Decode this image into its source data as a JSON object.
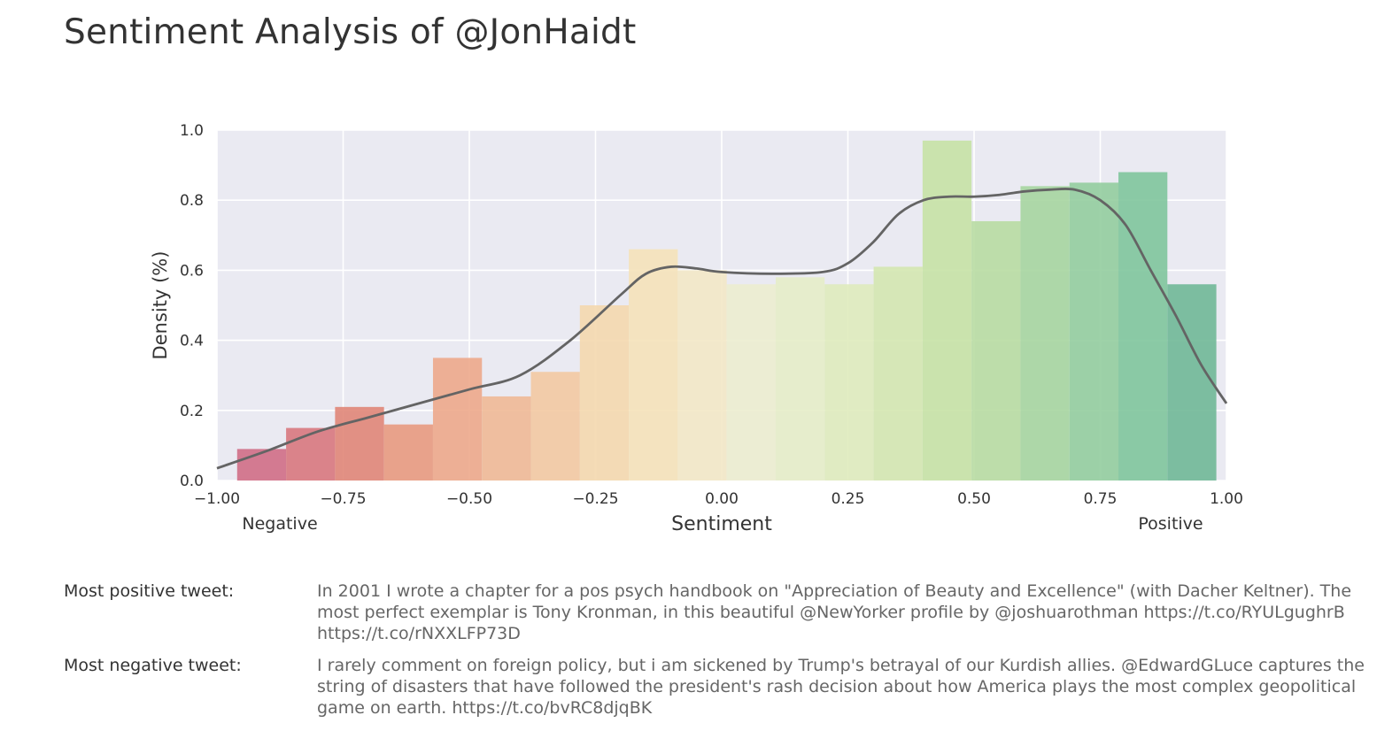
{
  "page": {
    "title": "Sentiment Analysis of @JonHaidt"
  },
  "chart_data": {
    "type": "bar",
    "title": "",
    "xlabel": "Sentiment",
    "ylabel": "Density (%)",
    "xlim": [
      -1.0,
      1.0
    ],
    "ylim": [
      0.0,
      1.0
    ],
    "x_ticks": [
      "−1.00",
      "−0.75",
      "−0.50",
      "−0.25",
      "0.00",
      "0.25",
      "0.50",
      "0.75",
      "1.00"
    ],
    "x_tick_values": [
      -1.0,
      -0.75,
      -0.5,
      -0.25,
      0.0,
      0.25,
      0.5,
      0.75,
      1.0
    ],
    "y_ticks": [
      "0.0",
      "0.2",
      "0.4",
      "0.6",
      "0.8",
      "1.0"
    ],
    "y_tick_values": [
      0.0,
      0.2,
      0.4,
      0.6,
      0.8,
      1.0
    ],
    "x_end_labels": {
      "left": "Negative",
      "right": "Positive"
    },
    "grid": true,
    "histogram": {
      "bin_edges": [
        -0.96,
        -0.863,
        -0.766,
        -0.669,
        -0.572,
        -0.475,
        -0.378,
        -0.281,
        -0.184,
        -0.087,
        0.01,
        0.107,
        0.204,
        0.301,
        0.398,
        0.495,
        0.592,
        0.689,
        0.786,
        0.883,
        0.98
      ],
      "values": [
        0.09,
        0.15,
        0.21,
        0.16,
        0.35,
        0.24,
        0.31,
        0.5,
        0.66,
        0.6,
        0.56,
        0.58,
        0.56,
        0.61,
        0.97,
        0.74,
        0.84,
        0.85,
        0.88,
        0.56
      ],
      "colors": [
        "#d06e86",
        "#d8787e",
        "#e08678",
        "#e89a80",
        "#eda98b",
        "#f0b996",
        "#f3c9a2",
        "#f4d8ae",
        "#f5e2b9",
        "#f3e8c6",
        "#ecedcf",
        "#e6edc8",
        "#dfebbc",
        "#d4e7b0",
        "#c7e2a5",
        "#b8dca2",
        "#a6d5a0",
        "#93cd9e",
        "#80c59c",
        "#70b897"
      ]
    },
    "series": [
      {
        "name": "",
        "type": "line",
        "x": [
          -1.0,
          -0.9,
          -0.8,
          -0.7,
          -0.6,
          -0.5,
          -0.4,
          -0.3,
          -0.2,
          -0.15,
          -0.1,
          -0.05,
          0.0,
          0.1,
          0.2,
          0.25,
          0.3,
          0.35,
          0.4,
          0.45,
          0.5,
          0.55,
          0.6,
          0.65,
          0.7,
          0.75,
          0.8,
          0.85,
          0.9,
          0.95,
          1.0
        ],
        "y": [
          0.035,
          0.085,
          0.14,
          0.18,
          0.22,
          0.26,
          0.3,
          0.4,
          0.53,
          0.59,
          0.61,
          0.605,
          0.595,
          0.59,
          0.595,
          0.62,
          0.68,
          0.76,
          0.8,
          0.81,
          0.81,
          0.815,
          0.825,
          0.83,
          0.83,
          0.8,
          0.73,
          0.6,
          0.47,
          0.33,
          0.22
        ],
        "color": "#646464"
      }
    ]
  },
  "tweets": {
    "positive_label": "Most positive tweet:",
    "positive_text": "In 2001 I wrote a chapter for a pos psych handbook on \"Appreciation of Beauty and Excellence\" (with Dacher Keltner). The most perfect exemplar is Tony Kronman, in this beautiful @NewYorker profile by @joshuarothman https://t.co/RYULgughrB https://t.co/rNXXLFP73D",
    "negative_label": "Most negative tweet:",
    "negative_text": "I rarely comment on foreign policy, but i am sickened by Trump's betrayal of our Kurdish allies. @EdwardGLuce captures the string of disasters that have followed the president's rash decision about how America plays the most complex geopolitical game on earth. https://t.co/bvRC8djqBK"
  },
  "colors": {
    "plot_background": "#eaeaf2",
    "grid": "#ffffff",
    "kde_line": "#646464"
  }
}
